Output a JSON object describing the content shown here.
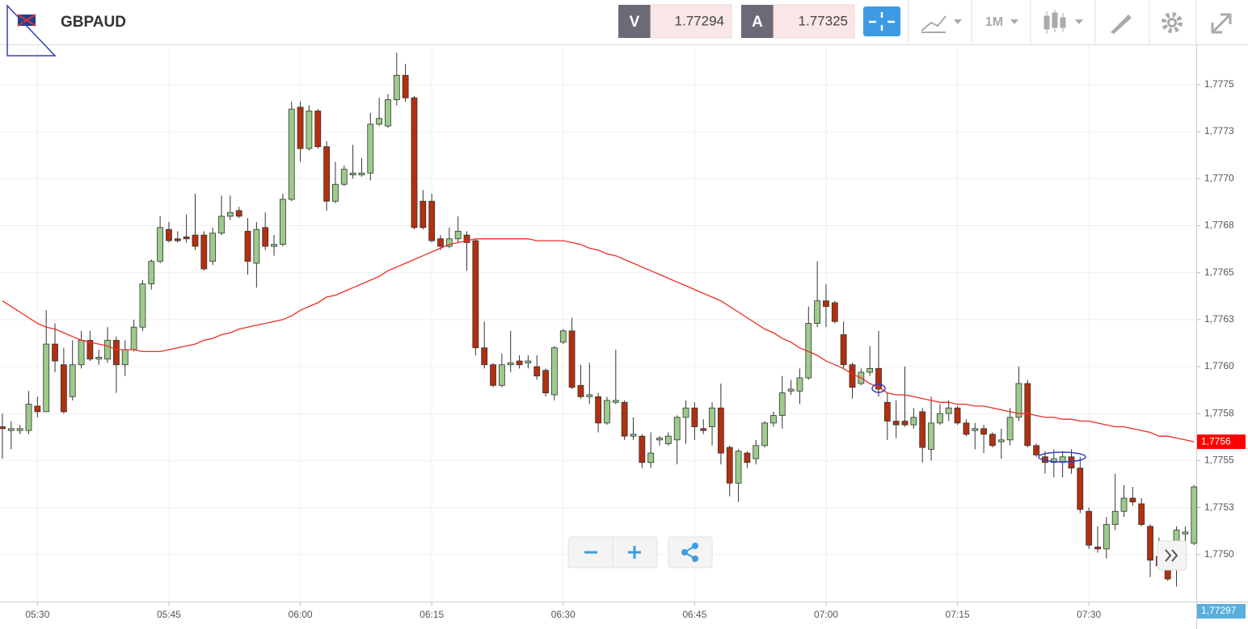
{
  "header": {
    "symbol": "GBPAUD",
    "bid_label": "V",
    "bid": 1.77294,
    "ask_label": "A",
    "ask": 1.77325,
    "timeframe": "1M"
  },
  "chart_data": {
    "type": "candlestick",
    "categories": [
      null,
      null,
      null,
      null,
      "05:30",
      null,
      null,
      null,
      null,
      null,
      null,
      null,
      null,
      null,
      null,
      null,
      null,
      null,
      null,
      "05:45",
      null,
      null,
      null,
      null,
      null,
      null,
      null,
      null,
      null,
      null,
      null,
      null,
      null,
      null,
      "06:00",
      null,
      null,
      null,
      null,
      null,
      null,
      null,
      null,
      null,
      null,
      null,
      null,
      null,
      null,
      "06:15",
      null,
      null,
      null,
      null,
      null,
      null,
      null,
      null,
      null,
      null,
      null,
      null,
      null,
      null,
      "06:30",
      null,
      null,
      null,
      null,
      null,
      null,
      null,
      null,
      null,
      null,
      null,
      null,
      null,
      null,
      "06:45",
      null,
      null,
      null,
      null,
      null,
      null,
      null,
      null,
      null,
      null,
      null,
      null,
      null,
      null,
      "07:00",
      null,
      null,
      null,
      null,
      null,
      null,
      null,
      null,
      null,
      null,
      null,
      null,
      null,
      null,
      "07:15",
      null,
      null,
      null,
      null,
      null,
      null,
      null,
      null,
      null,
      null,
      null,
      null,
      null,
      null,
      "07:30",
      null,
      null,
      null,
      null,
      null,
      null,
      null,
      null,
      null,
      null,
      null,
      null
    ],
    "open": [
      1.77568,
      1.77566,
      1.77566,
      1.77566,
      1.77579,
      1.77576,
      1.77612,
      1.77601,
      1.77584,
      1.77601,
      1.77614,
      1.77604,
      1.77604,
      1.77614,
      1.77601,
      1.77609,
      1.77621,
      1.77644,
      1.77656,
      1.77673,
      1.77668,
      1.77669,
      1.7767,
      1.7767,
      1.77656,
      1.77671,
      1.7768,
      1.77683,
      1.77672,
      1.77655,
      1.77674,
      1.77664,
      1.77665,
      1.77689,
      1.77738,
      1.77716,
      1.77736,
      1.77717,
      1.77688,
      1.77697,
      1.77702,
      1.77702,
      1.77703,
      1.77729,
      1.77728,
      1.77742,
      1.77755,
      1.77743,
      1.77688,
      1.77688,
      1.77668,
      1.77664,
      1.77668,
      1.7767,
      1.77667,
      1.7761,
      1.77601,
      1.7759,
      1.77601,
      1.77603,
      1.77602,
      1.776,
      1.77598,
      1.77585,
      1.77613,
      1.77619,
      1.7759,
      1.77584,
      1.77584,
      1.7757,
      1.77581,
      1.77581,
      1.77563,
      1.77563,
      1.77549,
      1.77561,
      1.77559,
      1.77561,
      1.77573,
      1.77578,
      1.77567,
      1.77568,
      1.77578,
      1.77557,
      1.77538,
      1.77554,
      1.77551,
      1.77558,
      1.7757,
      1.77574,
      1.77587,
      1.77587,
      1.77594,
      1.77623,
      1.77635,
      1.77634,
      1.77617,
      1.77601,
      1.77591,
      1.77597,
      1.77599,
      1.77581,
      1.77571,
      1.77571,
      1.77569,
      1.77576,
      1.77556,
      1.7757,
      1.77575,
      1.77578,
      1.7757,
      1.77566,
      1.77567,
      1.77564,
      1.7756,
      1.77561,
      1.77573,
      1.77591,
      1.77558,
      1.77552,
      1.77549,
      1.77549,
      1.77552,
      1.77546,
      1.77523,
      1.77504,
      1.77503,
      1.77516,
      1.77523,
      1.7753,
      1.77527,
      1.77515,
      1.77499,
      1.77494,
      1.77494,
      1.77511,
      1.77506
    ],
    "high": [
      1.77575,
      1.77571,
      1.77569,
      1.77587,
      1.77584,
      1.7763,
      1.77623,
      1.7761,
      1.77614,
      1.77619,
      1.77619,
      1.77609,
      1.77621,
      1.77616,
      1.77614,
      1.77625,
      1.77646,
      1.77657,
      1.7768,
      1.77677,
      1.77672,
      1.77681,
      1.77692,
      1.77672,
      1.77674,
      1.77691,
      1.77691,
      1.77685,
      1.77679,
      1.77677,
      1.77682,
      1.7767,
      1.77692,
      1.77741,
      1.77741,
      1.77739,
      1.77737,
      1.7772,
      1.77709,
      1.77707,
      1.77718,
      1.77711,
      1.77735,
      1.77743,
      1.77745,
      1.77767,
      1.77761,
      1.77744,
      1.77694,
      1.77692,
      1.7767,
      1.77674,
      1.7768,
      1.77672,
      1.77668,
      1.77624,
      1.77602,
      1.77607,
      1.77619,
      1.77606,
      1.77606,
      1.77606,
      1.77599,
      1.77611,
      1.7762,
      1.77626,
      1.77601,
      1.77602,
      1.77586,
      1.77584,
      1.77609,
      1.77582,
      1.77573,
      1.77564,
      1.77565,
      1.77563,
      1.77565,
      1.77574,
      1.77582,
      1.77581,
      1.77572,
      1.77581,
      1.77591,
      1.77558,
      1.77556,
      1.77555,
      1.77561,
      1.77571,
      1.77576,
      1.77595,
      1.77593,
      1.77599,
      1.77632,
      1.77656,
      1.77644,
      1.77635,
      1.77624,
      1.77602,
      1.77599,
      1.77611,
      1.77619,
      1.77586,
      1.77582,
      1.776,
      1.77578,
      1.77578,
      1.77584,
      1.7758,
      1.77582,
      1.77579,
      1.77572,
      1.7757,
      1.77569,
      1.77565,
      1.77567,
      1.77578,
      1.776,
      1.77593,
      1.77559,
      1.77555,
      1.77556,
      1.77555,
      1.77556,
      1.77552,
      1.77525,
      1.77515,
      1.7752,
      1.77543,
      1.77537,
      1.77536,
      1.7753,
      1.77516,
      1.77509,
      1.77496,
      1.77515,
      1.77515,
      1.77537
    ],
    "low": [
      1.77551,
      1.77556,
      1.77564,
      1.77564,
      1.77573,
      1.77576,
      1.77597,
      1.77575,
      1.77582,
      1.77599,
      1.77603,
      1.77601,
      1.77602,
      1.77586,
      1.77595,
      1.77608,
      1.77619,
      1.77641,
      1.77655,
      1.77666,
      1.77666,
      1.77666,
      1.77662,
      1.77651,
      1.77654,
      1.7767,
      1.77678,
      1.77679,
      1.77649,
      1.77642,
      1.77662,
      1.77659,
      1.77664,
      1.77688,
      1.77709,
      1.77715,
      1.77716,
      1.77683,
      1.77687,
      1.77696,
      1.777,
      1.77701,
      1.77699,
      1.77728,
      1.77727,
      1.77739,
      1.77741,
      1.77673,
      1.77673,
      1.77666,
      1.77662,
      1.77663,
      1.77666,
      1.77651,
      1.77606,
      1.77599,
      1.77589,
      1.77589,
      1.77597,
      1.77599,
      1.77599,
      1.77593,
      1.77584,
      1.77582,
      1.77612,
      1.77588,
      1.77583,
      1.7758,
      1.77565,
      1.77569,
      1.7758,
      1.77561,
      1.77561,
      1.77546,
      1.77546,
      1.77558,
      1.77558,
      1.77548,
      1.77559,
      1.77561,
      1.77564,
      1.77558,
      1.77548,
      1.77531,
      1.77528,
      1.77546,
      1.77548,
      1.77557,
      1.77568,
      1.77567,
      1.77585,
      1.7758,
      1.77593,
      1.77621,
      1.77621,
      1.77623,
      1.77599,
      1.77583,
      1.7759,
      1.77595,
      1.77584,
      1.77561,
      1.77562,
      1.77568,
      1.77567,
      1.77549,
      1.7755,
      1.77569,
      1.77571,
      1.77569,
      1.77563,
      1.77556,
      1.77554,
      1.77557,
      1.77551,
      1.77558,
      1.77571,
      1.77557,
      1.77552,
      1.77543,
      1.77541,
      1.77541,
      1.77543,
      1.77522,
      1.77503,
      1.77501,
      1.77498,
      1.77513,
      1.7752,
      1.77526,
      1.77515,
      1.77488,
      1.77492,
      1.77486,
      1.77483,
      1.77503,
      1.77505
    ],
    "close": [
      1.77567,
      1.77567,
      1.77567,
      1.7758,
      1.77576,
      1.77612,
      1.77603,
      1.77576,
      1.77601,
      1.77614,
      1.77604,
      1.77605,
      1.77614,
      1.77601,
      1.77609,
      1.77621,
      1.77644,
      1.77656,
      1.77674,
      1.77667,
      1.77667,
      1.77668,
      1.77664,
      1.77652,
      1.77671,
      1.7768,
      1.77682,
      1.7768,
      1.77656,
      1.77673,
      1.77664,
      1.77665,
      1.77689,
      1.77737,
      1.77716,
      1.77736,
      1.77717,
      1.77688,
      1.77697,
      1.77705,
      1.77703,
      1.77703,
      1.77729,
      1.77732,
      1.77742,
      1.77755,
      1.77743,
      1.77674,
      1.77674,
      1.77667,
      1.77664,
      1.77668,
      1.77672,
      1.77666,
      1.7761,
      1.77601,
      1.7759,
      1.77601,
      1.77602,
      1.77601,
      1.77603,
      1.77595,
      1.77586,
      1.7761,
      1.77619,
      1.77589,
      1.77584,
      1.77585,
      1.7757,
      1.77582,
      1.77582,
      1.77563,
      1.77564,
      1.77549,
      1.77554,
      1.77562,
      1.77563,
      1.77573,
      1.77578,
      1.77568,
      1.77566,
      1.77578,
      1.77554,
      1.77538,
      1.77555,
      1.77549,
      1.77558,
      1.7757,
      1.77574,
      1.77586,
      1.77588,
      1.77594,
      1.77623,
      1.77635,
      1.77632,
      1.77624,
      1.77601,
      1.77589,
      1.77597,
      1.77599,
      1.77588,
      1.77571,
      1.77569,
      1.77569,
      1.77573,
      1.77557,
      1.7757,
      1.77575,
      1.77578,
      1.7757,
      1.77564,
      1.77567,
      1.77564,
      1.77558,
      1.77561,
      1.77573,
      1.77591,
      1.77558,
      1.77553,
      1.77549,
      1.77551,
      1.77552,
      1.77546,
      1.77524,
      1.77505,
      1.77503,
      1.77516,
      1.77523,
      1.7753,
      1.77528,
      1.77516,
      1.77497,
      1.77494,
      1.77487,
      1.77513,
      1.77512,
      1.77536
    ],
    "up_color": "#9ccb8b",
    "down_color": "#b3300f",
    "moving_average": {
      "color": "#ee2b24",
      "values": [
        1.77635,
        1.77632,
        1.77629,
        1.77626,
        1.77623,
        1.77621,
        1.7762,
        1.77618,
        1.77616,
        1.77614,
        1.77613,
        1.77612,
        1.77611,
        1.77609,
        1.77609,
        1.77609,
        1.77608,
        1.77608,
        1.77608,
        1.77609,
        1.7761,
        1.77611,
        1.77612,
        1.77614,
        1.77615,
        1.77617,
        1.77618,
        1.7762,
        1.77621,
        1.77622,
        1.77623,
        1.77624,
        1.77625,
        1.77627,
        1.7763,
        1.77632,
        1.77634,
        1.77637,
        1.77638,
        1.7764,
        1.77642,
        1.77644,
        1.77646,
        1.77648,
        1.77651,
        1.77653,
        1.77655,
        1.77657,
        1.77659,
        1.77661,
        1.77663,
        1.77665,
        1.77666,
        1.77667,
        1.77668,
        1.77668,
        1.77668,
        1.77668,
        1.77668,
        1.77668,
        1.77668,
        1.77667,
        1.77667,
        1.77667,
        1.77667,
        1.77666,
        1.77665,
        1.77663,
        1.77662,
        1.7766,
        1.77659,
        1.77657,
        1.77655,
        1.77653,
        1.77651,
        1.77649,
        1.77647,
        1.77645,
        1.77643,
        1.77641,
        1.77639,
        1.77637,
        1.77635,
        1.77632,
        1.77629,
        1.77626,
        1.77623,
        1.7762,
        1.77618,
        1.77615,
        1.77613,
        1.7761,
        1.77608,
        1.77606,
        1.77603,
        1.77601,
        1.77599,
        1.77596,
        1.77594,
        1.77591,
        1.77589,
        1.77586,
        1.77585,
        1.77585,
        1.77584,
        1.77583,
        1.77582,
        1.77581,
        1.77581,
        1.7758,
        1.7758,
        1.77579,
        1.77579,
        1.77578,
        1.77577,
        1.77576,
        1.77575,
        1.77575,
        1.77574,
        1.77573,
        1.77573,
        1.77572,
        1.77572,
        1.77571,
        1.77571,
        1.7757,
        1.77569,
        1.77568,
        1.77568,
        1.77567,
        1.77566,
        1.77565,
        1.77563,
        1.77563,
        1.77562,
        1.77561,
        1.7756
      ]
    },
    "ylim": [
      1.77475,
      1.77771
    ],
    "yticks": [
      {
        "value": 1.7775,
        "label": "1,7775"
      },
      {
        "value": 1.77725,
        "label": "1,7773"
      },
      {
        "value": 1.777,
        "label": "1,7770"
      },
      {
        "value": 1.77675,
        "label": "1,7768"
      },
      {
        "value": 1.7765,
        "label": "1,7765"
      },
      {
        "value": 1.77625,
        "label": "1,7763"
      },
      {
        "value": 1.776,
        "label": "1,7760"
      },
      {
        "value": 1.77575,
        "label": "1,7758"
      },
      {
        "value": 1.7755,
        "label": "1,7755"
      },
      {
        "value": 1.77525,
        "label": "1,7753"
      },
      {
        "value": 1.775,
        "label": "1,7750"
      }
    ],
    "grid": true,
    "price_labels": [
      {
        "value": 1.7756,
        "label": "1,7756",
        "color": "#ff0000"
      },
      {
        "value": 1.77297,
        "label": "1,77297",
        "color": "#5aaedb"
      }
    ]
  }
}
